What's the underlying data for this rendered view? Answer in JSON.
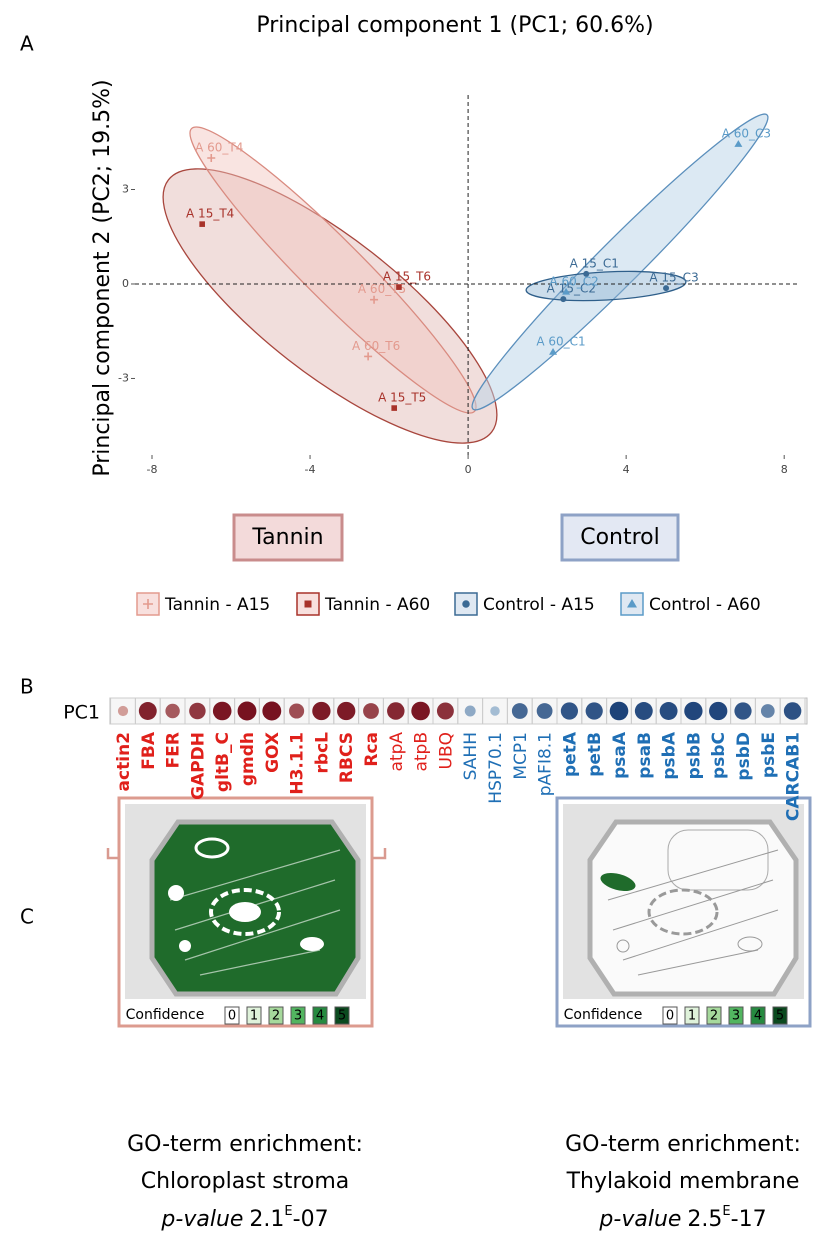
{
  "panel_labels": [
    "A",
    "B",
    "C"
  ],
  "chart_data": [
    {
      "type": "scatter",
      "title": "Principal component 1 (PC1; 60.6%)",
      "y_label": "Principal component 2 (PC2; 19.5%)",
      "xlim": [
        -8.43,
        8.4
      ],
      "ylim": [
        -5.43,
        6.0
      ],
      "xticks": [
        -8,
        -4,
        0,
        4,
        8
      ],
      "yticks": [
        -3,
        0,
        3
      ],
      "grid": false,
      "series": [
        {
          "name": "Tannin - A15",
          "color": "#e39a8e",
          "marker": "plus",
          "labels": [
            "A 60_T4",
            "A 60_T5",
            "A 60_T6"
          ],
          "x": [
            -6.5,
            -2.38,
            -2.53
          ],
          "values": [
            4.0,
            -0.5,
            -2.3
          ]
        },
        {
          "name": "Tannin - A60",
          "color": "#a8322a",
          "marker": "square",
          "labels": [
            "A 15_T4",
            "A 15_T6",
            "A 15_T5"
          ],
          "x": [
            -6.73,
            -1.75,
            -1.87
          ],
          "values": [
            1.9,
            -0.1,
            -3.94
          ]
        },
        {
          "name": "Control - A15",
          "color": "#3b6a94",
          "marker": "circle",
          "labels": [
            "A 15_C1",
            "A 15_C3",
            "A 15_C2"
          ],
          "x": [
            2.99,
            5.01,
            2.41
          ],
          "values": [
            0.32,
            -0.13,
            -0.48
          ]
        },
        {
          "name": "Control - A60",
          "color": "#5b9bc8",
          "marker": "triangle",
          "labels": [
            "A 60_C3",
            "A 60_C2",
            "A 60_C1"
          ],
          "x": [
            6.84,
            2.48,
            2.15
          ],
          "values": [
            4.44,
            -0.25,
            -2.16
          ]
        }
      ]
    },
    {
      "type": "dot",
      "row_label": "PC1",
      "categories": [
        "actin2",
        "FBA",
        "FER",
        "GAPDH",
        "gltB_C",
        "gmdh",
        "GOX",
        "H3.1.1",
        "rbcL",
        "RBCS",
        "Rca",
        "atpA",
        "atpB",
        "UBQ",
        "SAHH",
        "HSP70.1",
        "MCP1",
        "pAFI8.1",
        "petA",
        "petB",
        "psaA",
        "psaB",
        "psbA",
        "psbB",
        "psbC",
        "psbD",
        "psbE",
        "CARCAB1"
      ],
      "values": [
        -0.3,
        -0.85,
        -0.6,
        -0.75,
        -0.9,
        -0.92,
        -0.92,
        -0.65,
        -0.88,
        -0.88,
        -0.7,
        -0.82,
        -0.9,
        -0.78,
        0.35,
        0.25,
        0.7,
        0.7,
        0.8,
        0.8,
        0.9,
        0.85,
        0.85,
        0.88,
        0.88,
        0.8,
        0.55,
        0.82
      ],
      "bold": [
        true,
        true,
        true,
        true,
        true,
        true,
        true,
        true,
        true,
        true,
        true,
        false,
        false,
        false,
        false,
        false,
        false,
        false,
        true,
        true,
        true,
        true,
        true,
        true,
        true,
        true,
        true,
        true
      ]
    }
  ],
  "groups": [
    "Tannin",
    "Control"
  ],
  "panels": [
    {
      "confidence_label": "Confidence",
      "confidence_levels": [
        0,
        1,
        2,
        3,
        4,
        5
      ],
      "caption": [
        "GO-term enrichment:",
        "Chloroplast stroma"
      ],
      "p_label": "p-value",
      "p_mantissa": 2.1,
      "p_exp_mark": "E",
      "p_exp": "-07"
    },
    {
      "confidence_label": "Confidence",
      "confidence_levels": [
        0,
        1,
        2,
        3,
        4,
        5
      ],
      "caption": [
        "GO-term enrichment:",
        "Thylakoid membrane"
      ],
      "p_label": "p-value",
      "p_mantissa": 2.5,
      "p_exp_mark": "E",
      "p_exp": "-17"
    }
  ]
}
